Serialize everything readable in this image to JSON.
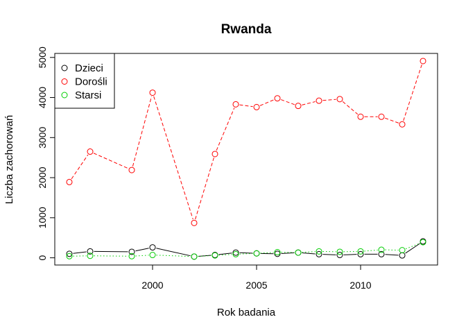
{
  "chart_data": {
    "type": "line",
    "title": "Rwanda",
    "xlabel": "Rok badania",
    "ylabel": "Liczba zachorowań",
    "xlim": [
      1995.3,
      2013.7
    ],
    "ylim": [
      -180,
      5100
    ],
    "x_ticks": [
      2000,
      2005,
      2010
    ],
    "y_ticks": [
      0,
      1000,
      2000,
      3000,
      4000,
      5000
    ],
    "grid": false,
    "legend_position": "top-left",
    "series": [
      {
        "name": "Dzieci",
        "color": "#000000",
        "line_style": "solid",
        "x": [
          1996,
          1997,
          1999,
          2000,
          2002,
          2003,
          2004,
          2005,
          2006,
          2007,
          2008,
          2009,
          2010,
          2011,
          2012,
          2013
        ],
        "y": [
          100,
          160,
          150,
          260,
          30,
          70,
          130,
          110,
          100,
          130,
          90,
          70,
          90,
          90,
          60,
          410
        ]
      },
      {
        "name": "Dorośli",
        "color": "#ff0000",
        "line_style": "dashed",
        "x": [
          1996,
          1997,
          1999,
          2000,
          2002,
          2003,
          2004,
          2005,
          2006,
          2007,
          2008,
          2009,
          2010,
          2011,
          2012,
          2013
        ],
        "y": [
          1890,
          2650,
          2190,
          4120,
          870,
          2590,
          3830,
          3760,
          3980,
          3790,
          3920,
          3960,
          3520,
          3520,
          3330,
          4910
        ]
      },
      {
        "name": "Starsi",
        "color": "#00cd00",
        "line_style": "dotted",
        "x": [
          1996,
          1997,
          1999,
          2000,
          2002,
          2003,
          2004,
          2005,
          2006,
          2007,
          2008,
          2009,
          2010,
          2011,
          2012,
          2013
        ],
        "y": [
          40,
          50,
          40,
          70,
          30,
          60,
          90,
          110,
          140,
          130,
          160,
          150,
          160,
          200,
          190,
          390
        ]
      }
    ]
  }
}
